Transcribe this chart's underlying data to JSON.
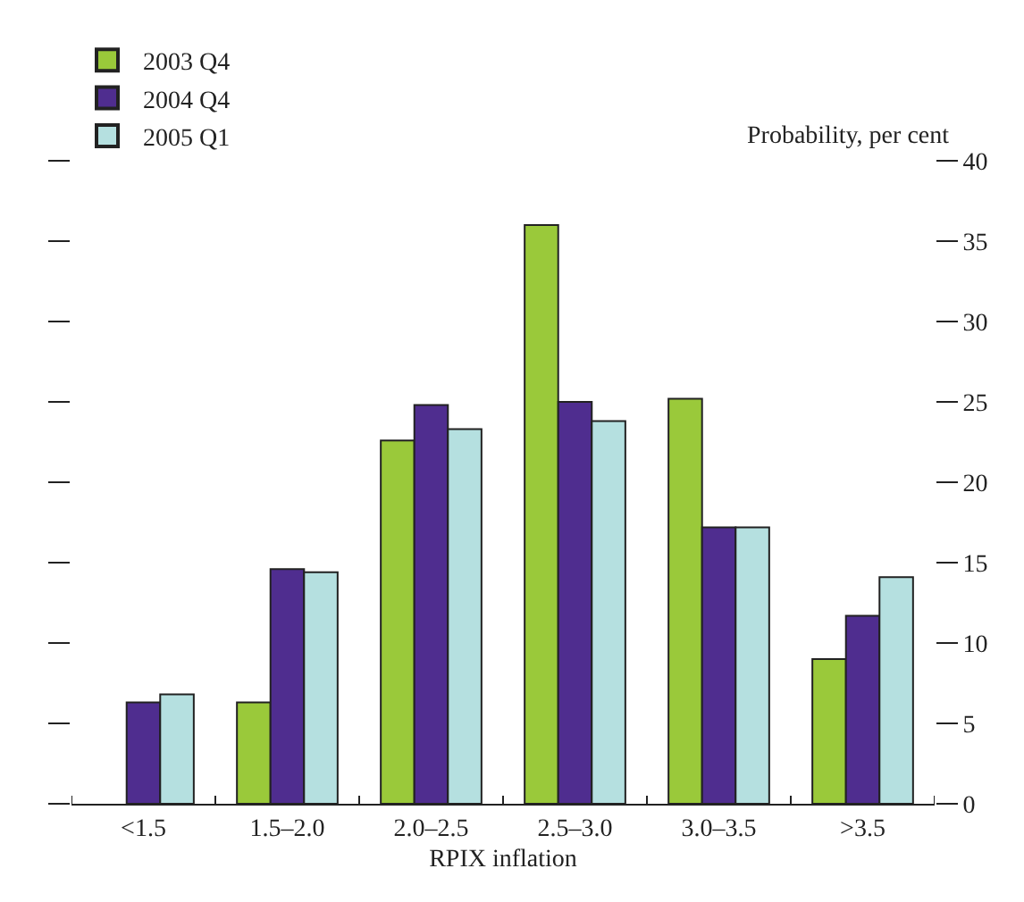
{
  "chart_data": {
    "type": "bar",
    "xlabel": "RPIX inflation",
    "ylabel": "Probability, per cent",
    "categories": [
      "<1.5",
      "1.5–2.0",
      "2.0–2.5",
      "2.5–3.0",
      "3.0–3.5",
      ">3.5"
    ],
    "series": [
      {
        "name": "2003 Q4",
        "color": "#9ac93a",
        "values": [
          null,
          6.3,
          22.6,
          36.0,
          25.2,
          9.0
        ]
      },
      {
        "name": "2004 Q4",
        "color": "#4f2d8f",
        "values": [
          6.3,
          14.6,
          24.8,
          25.0,
          17.2,
          11.7
        ]
      },
      {
        "name": "2005 Q1",
        "color": "#b5e0e0",
        "values": [
          6.8,
          14.4,
          23.3,
          23.8,
          17.2,
          14.1
        ]
      }
    ],
    "ylim": [
      0,
      40
    ],
    "yticks": [
      0,
      5,
      10,
      15,
      20,
      25,
      30,
      35,
      40
    ],
    "legend": "top left"
  }
}
